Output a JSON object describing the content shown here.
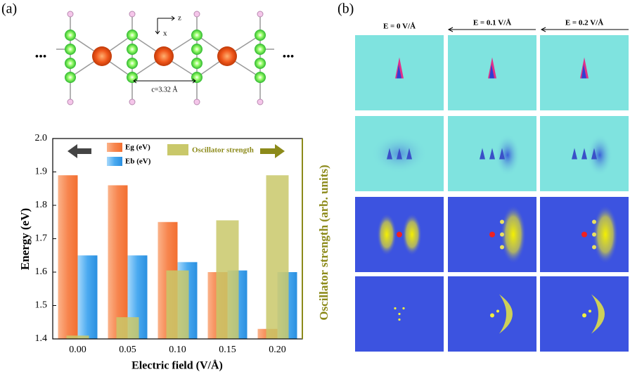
{
  "panel_labels": [
    "(a)",
    "(b)"
  ],
  "structure": {
    "lattice": "c=3.32 Å",
    "axis_z": "z",
    "axis_x": "x",
    "ellipsis": "•••"
  },
  "density_maps": {
    "columns": [
      "E = 0 V/Å",
      "E = 0.1 V/Å",
      "E = 0.2 V/Å"
    ]
  },
  "chart_data": {
    "type": "bar",
    "categories": [
      "0.00",
      "0.05",
      "0.10",
      "0.15",
      "0.20"
    ],
    "xlabel": "Electric field (V/Å)",
    "ylabel": "Energy (eV)",
    "y2label": "Oscillator strength (arb. units)",
    "ylim": [
      1.4,
      2.0
    ],
    "yticks": [
      1.4,
      1.5,
      1.6,
      1.7,
      1.8,
      1.9,
      {
        "value": 2.0,
        "label": "2.0"
      }
    ],
    "series": [
      {
        "name": "Eg (eV)",
        "color": "#f7864f",
        "values": [
          1.89,
          1.86,
          1.75,
          1.6,
          1.43
        ]
      },
      {
        "name": "Eb (eV)",
        "color": "#4aaaf0",
        "values": [
          1.65,
          1.65,
          1.63,
          1.605,
          1.6
        ]
      },
      {
        "name": "Oscillator strength",
        "color": "#c9c86a",
        "values": [
          1.41,
          1.465,
          1.605,
          1.755,
          1.89
        ]
      }
    ]
  }
}
